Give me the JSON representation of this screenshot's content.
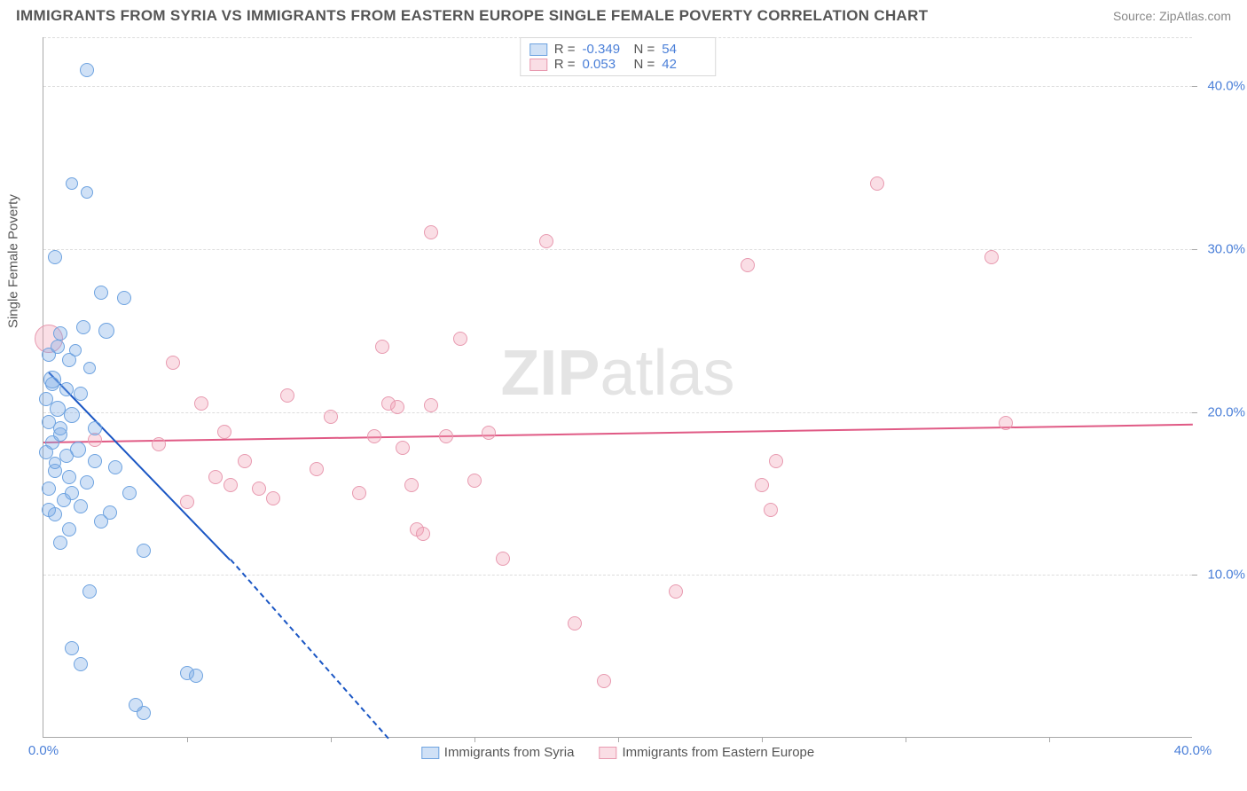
{
  "title": "IMMIGRANTS FROM SYRIA VS IMMIGRANTS FROM EASTERN EUROPE SINGLE FEMALE POVERTY CORRELATION CHART",
  "source": "Source: ZipAtlas.com",
  "y_axis_label": "Single Female Poverty",
  "watermark_bold": "ZIP",
  "watermark_rest": "atlas",
  "colors": {
    "series_a_fill": "rgba(120,170,230,0.35)",
    "series_a_stroke": "#6ea3e0",
    "series_a_line": "#1a56c4",
    "series_b_fill": "rgba(240,160,180,0.35)",
    "series_b_stroke": "#e89ab0",
    "series_b_line": "#e05a85",
    "axis_text": "#4a7fd8",
    "grid": "#ddd"
  },
  "xlim": [
    0,
    40
  ],
  "ylim": [
    0,
    43
  ],
  "y_ticks": [
    {
      "v": 10,
      "label": "10.0%"
    },
    {
      "v": 20,
      "label": "20.0%"
    },
    {
      "v": 30,
      "label": "30.0%"
    },
    {
      "v": 40,
      "label": "40.0%"
    }
  ],
  "x_tick_marks": [
    5,
    10,
    15,
    20,
    25,
    30,
    35
  ],
  "x_labels": [
    {
      "v": 0,
      "label": "0.0%"
    },
    {
      "v": 40,
      "label": "40.0%"
    }
  ],
  "legend_top": [
    {
      "swatch": "a",
      "r_label": "R =",
      "r_val": "-0.349",
      "n_label": "N =",
      "n_val": "54"
    },
    {
      "swatch": "b",
      "r_label": "R =",
      "r_val": " 0.053",
      "n_label": "N =",
      "n_val": "42"
    }
  ],
  "legend_bottom": [
    {
      "swatch": "a",
      "label": "Immigrants from Syria"
    },
    {
      "swatch": "b",
      "label": "Immigrants from Eastern Europe"
    }
  ],
  "trend_lines": {
    "a": {
      "x1": 0.2,
      "y1": 22.5,
      "x2": 6.5,
      "y2": 11.0,
      "dash_x2": 12.0,
      "dash_y2": 0.0
    },
    "b": {
      "x1": 0.0,
      "y1": 18.2,
      "x2": 40.0,
      "y2": 19.3
    }
  },
  "series_a": [
    {
      "x": 1.5,
      "y": 41,
      "r": 8
    },
    {
      "x": 1.0,
      "y": 34,
      "r": 7
    },
    {
      "x": 1.5,
      "y": 33.5,
      "r": 7
    },
    {
      "x": 0.4,
      "y": 29.5,
      "r": 8
    },
    {
      "x": 2.0,
      "y": 27.3,
      "r": 8
    },
    {
      "x": 2.8,
      "y": 27,
      "r": 8
    },
    {
      "x": 1.4,
      "y": 25.2,
      "r": 8
    },
    {
      "x": 2.2,
      "y": 25,
      "r": 9
    },
    {
      "x": 0.6,
      "y": 24.8,
      "r": 8
    },
    {
      "x": 0.2,
      "y": 23.5,
      "r": 8
    },
    {
      "x": 0.9,
      "y": 23.2,
      "r": 8
    },
    {
      "x": 1.6,
      "y": 22.7,
      "r": 7
    },
    {
      "x": 0.3,
      "y": 22.0,
      "r": 10
    },
    {
      "x": 0.8,
      "y": 21.4,
      "r": 8
    },
    {
      "x": 1.3,
      "y": 21.1,
      "r": 8
    },
    {
      "x": 0.1,
      "y": 20.8,
      "r": 8
    },
    {
      "x": 0.5,
      "y": 20.2,
      "r": 9
    },
    {
      "x": 1.0,
      "y": 19.8,
      "r": 9
    },
    {
      "x": 0.2,
      "y": 19.4,
      "r": 8
    },
    {
      "x": 1.8,
      "y": 19.0,
      "r": 8
    },
    {
      "x": 0.6,
      "y": 18.6,
      "r": 8
    },
    {
      "x": 0.3,
      "y": 18.1,
      "r": 8
    },
    {
      "x": 1.2,
      "y": 17.7,
      "r": 9
    },
    {
      "x": 0.8,
      "y": 17.3,
      "r": 8
    },
    {
      "x": 0.1,
      "y": 17.5,
      "r": 8
    },
    {
      "x": 2.5,
      "y": 16.6,
      "r": 8
    },
    {
      "x": 0.4,
      "y": 16.4,
      "r": 8
    },
    {
      "x": 0.9,
      "y": 16.0,
      "r": 8
    },
    {
      "x": 1.5,
      "y": 15.7,
      "r": 8
    },
    {
      "x": 0.2,
      "y": 15.3,
      "r": 8
    },
    {
      "x": 3.0,
      "y": 15.0,
      "r": 8
    },
    {
      "x": 0.7,
      "y": 14.6,
      "r": 8
    },
    {
      "x": 1.3,
      "y": 14.2,
      "r": 8
    },
    {
      "x": 0.4,
      "y": 13.7,
      "r": 8
    },
    {
      "x": 2.0,
      "y": 13.3,
      "r": 8
    },
    {
      "x": 0.9,
      "y": 12.8,
      "r": 8
    },
    {
      "x": 3.5,
      "y": 11.5,
      "r": 8
    },
    {
      "x": 1.6,
      "y": 9.0,
      "r": 8
    },
    {
      "x": 1.0,
      "y": 5.5,
      "r": 8
    },
    {
      "x": 1.3,
      "y": 4.5,
      "r": 8
    },
    {
      "x": 5.0,
      "y": 4.0,
      "r": 8
    },
    {
      "x": 5.3,
      "y": 3.8,
      "r": 8
    },
    {
      "x": 3.2,
      "y": 2.0,
      "r": 8
    },
    {
      "x": 3.5,
      "y": 1.5,
      "r": 8
    },
    {
      "x": 0.5,
      "y": 24.0,
      "r": 8
    },
    {
      "x": 1.1,
      "y": 23.8,
      "r": 7
    },
    {
      "x": 0.3,
      "y": 21.7,
      "r": 8
    },
    {
      "x": 0.6,
      "y": 19.0,
      "r": 8
    },
    {
      "x": 1.8,
      "y": 17.0,
      "r": 8
    },
    {
      "x": 0.4,
      "y": 16.9,
      "r": 7
    },
    {
      "x": 1.0,
      "y": 15.0,
      "r": 8
    },
    {
      "x": 0.2,
      "y": 14.0,
      "r": 8
    },
    {
      "x": 2.3,
      "y": 13.8,
      "r": 8
    },
    {
      "x": 0.6,
      "y": 12.0,
      "r": 8
    }
  ],
  "series_b": [
    {
      "x": 0.2,
      "y": 24.5,
      "r": 16
    },
    {
      "x": 1.8,
      "y": 18.3,
      "r": 8
    },
    {
      "x": 4.5,
      "y": 23.0,
      "r": 8
    },
    {
      "x": 4.0,
      "y": 18.0,
      "r": 8
    },
    {
      "x": 5.5,
      "y": 20.5,
      "r": 8
    },
    {
      "x": 5.0,
      "y": 14.5,
      "r": 8
    },
    {
      "x": 6.0,
      "y": 16.0,
      "r": 8
    },
    {
      "x": 6.5,
      "y": 15.5,
      "r": 8
    },
    {
      "x": 7.0,
      "y": 17.0,
      "r": 8
    },
    {
      "x": 7.5,
      "y": 15.3,
      "r": 8
    },
    {
      "x": 8.0,
      "y": 14.7,
      "r": 8
    },
    {
      "x": 8.5,
      "y": 21.0,
      "r": 8
    },
    {
      "x": 11.5,
      "y": 18.5,
      "r": 8
    },
    {
      "x": 11.8,
      "y": 24.0,
      "r": 8
    },
    {
      "x": 12.0,
      "y": 20.5,
      "r": 8
    },
    {
      "x": 12.3,
      "y": 20.3,
      "r": 8
    },
    {
      "x": 12.8,
      "y": 15.5,
      "r": 8
    },
    {
      "x": 13.0,
      "y": 12.8,
      "r": 8
    },
    {
      "x": 13.2,
      "y": 12.5,
      "r": 8
    },
    {
      "x": 13.5,
      "y": 20.4,
      "r": 8
    },
    {
      "x": 13.5,
      "y": 31.0,
      "r": 8
    },
    {
      "x": 14.0,
      "y": 18.5,
      "r": 8
    },
    {
      "x": 14.5,
      "y": 24.5,
      "r": 8
    },
    {
      "x": 15.0,
      "y": 15.8,
      "r": 8
    },
    {
      "x": 15.5,
      "y": 18.7,
      "r": 8
    },
    {
      "x": 16.0,
      "y": 11.0,
      "r": 8
    },
    {
      "x": 17.5,
      "y": 30.5,
      "r": 8
    },
    {
      "x": 18.5,
      "y": 7.0,
      "r": 8
    },
    {
      "x": 19.5,
      "y": 3.5,
      "r": 8
    },
    {
      "x": 22.0,
      "y": 9.0,
      "r": 8
    },
    {
      "x": 25.0,
      "y": 15.5,
      "r": 8
    },
    {
      "x": 25.3,
      "y": 14.0,
      "r": 8
    },
    {
      "x": 25.5,
      "y": 17.0,
      "r": 8
    },
    {
      "x": 29.0,
      "y": 34.0,
      "r": 8
    },
    {
      "x": 33.0,
      "y": 29.5,
      "r": 8
    },
    {
      "x": 33.5,
      "y": 19.3,
      "r": 8
    },
    {
      "x": 6.3,
      "y": 18.8,
      "r": 8
    },
    {
      "x": 9.5,
      "y": 16.5,
      "r": 8
    },
    {
      "x": 10.0,
      "y": 19.7,
      "r": 8
    },
    {
      "x": 11.0,
      "y": 15.0,
      "r": 8
    },
    {
      "x": 12.5,
      "y": 17.8,
      "r": 8
    },
    {
      "x": 24.5,
      "y": 29.0,
      "r": 8
    }
  ]
}
